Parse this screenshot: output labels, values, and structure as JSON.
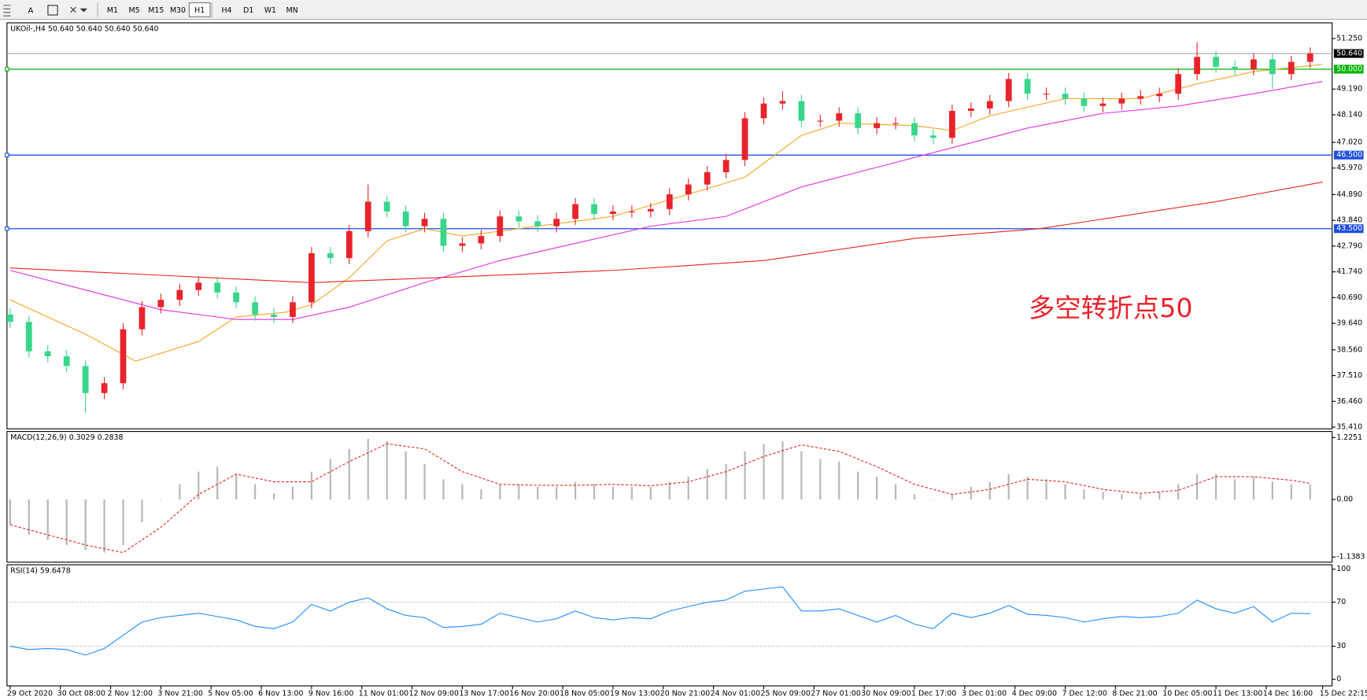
{
  "toolbar": {
    "text_tool": "A",
    "periods": [
      "M1",
      "M5",
      "M15",
      "M30",
      "H1",
      "H4",
      "D1",
      "W1",
      "MN"
    ],
    "active_period": 4
  },
  "chart_data": [
    {
      "type": "candlestick",
      "title": "UKOil-,H4 50.640 50.640 50.640 50.640",
      "annotation": {
        "text": "多空转折点50",
        "color": "#e8232b"
      },
      "up_color": "#e8232b",
      "down_color": "#38d68a",
      "xlim": [
        -0.5,
        210.5
      ],
      "ylim": [
        35.34,
        51.89
      ],
      "yticks": [
        {
          "value": 51.25,
          "label": "51.250"
        },
        {
          "value": 49.19,
          "label": "49.190"
        },
        {
          "value": 48.14,
          "label": "48.140"
        },
        {
          "value": 47.02,
          "label": "47.020"
        },
        {
          "value": 45.97,
          "label": "45.970"
        },
        {
          "value": 44.89,
          "label": "44.890"
        },
        {
          "value": 43.84,
          "label": "43.840"
        },
        {
          "value": 42.79,
          "label": "42.790"
        },
        {
          "value": 41.74,
          "label": "41.740"
        },
        {
          "value": 40.69,
          "label": "40.690"
        },
        {
          "value": 39.64,
          "label": "39.640"
        },
        {
          "value": 38.56,
          "label": "38.560"
        },
        {
          "value": 37.51,
          "label": "37.510"
        },
        {
          "value": 36.46,
          "label": "36.460"
        },
        {
          "value": 35.41,
          "label": "35.410"
        }
      ],
      "xticks": [
        {
          "value": 0,
          "label": "29 Oct 2020"
        },
        {
          "value": 8,
          "label": "30 Oct 08:00"
        },
        {
          "value": 16,
          "label": "2 Nov 12:00"
        },
        {
          "value": 24,
          "label": "3 Nov 21:00"
        },
        {
          "value": 32,
          "label": "5 Nov 05:00"
        },
        {
          "value": 40,
          "label": "6 Nov 13:00"
        },
        {
          "value": 48,
          "label": "9 Nov 16:00"
        },
        {
          "value": 56,
          "label": "11 Nov 01:00"
        },
        {
          "value": 64,
          "label": "12 Nov 09:00"
        },
        {
          "value": 72,
          "label": "13 Nov 17:00"
        },
        {
          "value": 80,
          "label": "16 Nov 20:00"
        },
        {
          "value": 88,
          "label": "18 Nov 05:00"
        },
        {
          "value": 96,
          "label": "19 Nov 13:00"
        },
        {
          "value": 104,
          "label": "20 Nov 21:00"
        },
        {
          "value": 112,
          "label": "24 Nov 01:00"
        },
        {
          "value": 120,
          "label": "25 Nov 09:00"
        },
        {
          "value": 128,
          "label": "27 Nov 01:00"
        },
        {
          "value": 136,
          "label": "30 Nov 09:00"
        },
        {
          "value": 144,
          "label": "1 Dec 17:00"
        },
        {
          "value": 152,
          "label": "3 Dec 01:00"
        },
        {
          "value": 160,
          "label": "4 Dec 09:00"
        },
        {
          "value": 168,
          "label": "7 Dec 12:00"
        },
        {
          "value": 176,
          "label": "8 Dec 21:00"
        },
        {
          "value": 184,
          "label": "10 Dec 05:00"
        },
        {
          "value": 192,
          "label": "11 Dec 13:00"
        },
        {
          "value": 200,
          "label": "14 Dec 16:00"
        },
        {
          "value": 209,
          "label": "15 Dec 22:15"
        }
      ],
      "current_price": {
        "value": 50.64,
        "label": "50.640",
        "color": "#9aa4ae"
      },
      "hlines": [
        {
          "value": 50.0,
          "label": "50.000",
          "color": "#00b400"
        },
        {
          "value": 46.5,
          "label": "46.500",
          "color": "#1f4fe0"
        },
        {
          "value": 43.5,
          "label": "43.500",
          "color": "#1f4fe0"
        }
      ],
      "x": [
        0,
        3,
        6,
        9,
        12,
        15,
        18,
        21,
        24,
        27,
        30,
        33,
        36,
        39,
        42,
        45,
        48,
        51,
        54,
        57,
        60,
        63,
        66,
        69,
        72,
        75,
        78,
        81,
        84,
        87,
        90,
        93,
        96,
        99,
        102,
        105,
        108,
        111,
        114,
        117,
        120,
        123,
        126,
        129,
        132,
        135,
        138,
        141,
        144,
        147,
        150,
        153,
        156,
        159,
        162,
        165,
        168,
        171,
        174,
        177,
        180,
        183,
        186,
        189,
        192,
        195,
        198,
        201,
        204,
        207
      ],
      "open": [
        40.0,
        39.7,
        38.5,
        38.3,
        37.9,
        36.8,
        37.2,
        39.4,
        40.3,
        40.6,
        41.0,
        41.3,
        40.9,
        40.5,
        40.0,
        39.9,
        40.5,
        42.5,
        42.3,
        43.4,
        44.6,
        44.2,
        43.6,
        43.9,
        42.8,
        42.9,
        43.2,
        44.0,
        43.8,
        43.6,
        43.9,
        44.5,
        44.1,
        44.2,
        44.2,
        44.3,
        44.9,
        45.3,
        45.8,
        46.3,
        48.0,
        48.6,
        48.7,
        47.9,
        47.9,
        48.2,
        47.6,
        47.8,
        47.8,
        47.3,
        47.2,
        48.3,
        48.4,
        48.7,
        49.6,
        49.0,
        49.0,
        48.8,
        48.5,
        48.6,
        48.8,
        48.9,
        49.0,
        49.8,
        50.5,
        50.1,
        50.0,
        50.4,
        49.8,
        50.3
      ],
      "high": [
        40.25,
        39.95,
        38.75,
        38.55,
        38.15,
        37.45,
        39.65,
        40.55,
        40.85,
        41.25,
        41.55,
        41.55,
        41.15,
        40.75,
        40.25,
        40.75,
        42.75,
        42.75,
        43.65,
        45.3,
        44.85,
        44.45,
        44.15,
        44.15,
        43.15,
        43.45,
        44.25,
        44.25,
        44.05,
        44.15,
        44.75,
        44.75,
        44.45,
        44.45,
        44.55,
        45.15,
        45.55,
        46.05,
        46.55,
        48.25,
        48.85,
        49.1,
        48.95,
        48.15,
        48.45,
        48.45,
        48.05,
        48.05,
        48.05,
        47.55,
        48.55,
        48.65,
        48.95,
        49.85,
        49.85,
        49.25,
        49.25,
        49.05,
        48.85,
        49.05,
        49.15,
        49.25,
        50.05,
        51.1,
        50.75,
        50.35,
        50.65,
        50.65,
        50.55,
        50.89
      ],
      "low": [
        39.45,
        38.25,
        38.05,
        37.65,
        36.0,
        36.55,
        36.95,
        39.15,
        40.05,
        40.35,
        40.75,
        40.65,
        40.25,
        39.75,
        39.65,
        39.65,
        40.25,
        42.05,
        42.05,
        43.15,
        43.95,
        43.35,
        43.35,
        42.55,
        42.55,
        42.65,
        42.95,
        43.55,
        43.35,
        43.35,
        43.65,
        43.85,
        43.85,
        43.95,
        43.95,
        44.05,
        44.65,
        45.05,
        45.55,
        46.05,
        47.75,
        48.35,
        47.65,
        47.65,
        47.65,
        47.35,
        47.35,
        47.55,
        47.05,
        46.95,
        46.95,
        48.05,
        48.15,
        48.45,
        48.75,
        48.75,
        48.55,
        48.25,
        48.25,
        48.35,
        48.55,
        48.65,
        48.75,
        49.55,
        49.85,
        49.75,
        49.75,
        49.2,
        49.55,
        50.05
      ],
      "close": [
        39.7,
        38.5,
        38.3,
        37.9,
        36.8,
        37.2,
        39.4,
        40.3,
        40.6,
        41.0,
        41.3,
        40.9,
        40.5,
        40.0,
        39.9,
        40.5,
        42.5,
        42.3,
        43.4,
        44.6,
        44.2,
        43.6,
        43.9,
        42.8,
        42.9,
        43.2,
        44.0,
        43.8,
        43.6,
        43.9,
        44.5,
        44.1,
        44.2,
        44.2,
        44.3,
        44.9,
        45.3,
        45.8,
        46.3,
        48.0,
        48.6,
        48.7,
        47.9,
        47.9,
        48.2,
        47.6,
        47.8,
        47.8,
        47.3,
        47.2,
        48.3,
        48.4,
        48.7,
        49.6,
        49.0,
        49.0,
        48.8,
        48.5,
        48.6,
        48.8,
        48.9,
        49.0,
        49.8,
        50.5,
        50.1,
        50.0,
        50.4,
        49.8,
        50.3,
        50.64
      ],
      "lines": [
        {
          "color": "#f5a623",
          "x": [
            0,
            12,
            20,
            30,
            36,
            44,
            48,
            54,
            60,
            66,
            72,
            84,
            96,
            108,
            117,
            126,
            132,
            144,
            150,
            156,
            168,
            180,
            189,
            198,
            209
          ],
          "values": [
            40.6,
            39.2,
            38.1,
            38.9,
            39.9,
            40.1,
            40.4,
            41.5,
            43.0,
            43.5,
            43.2,
            43.6,
            44.0,
            44.9,
            45.6,
            47.3,
            47.8,
            47.7,
            47.5,
            48.1,
            48.8,
            48.8,
            49.4,
            49.9,
            50.2
          ]
        },
        {
          "color": "#e62ee6",
          "x": [
            0,
            24,
            36,
            45,
            54,
            66,
            78,
            90,
            102,
            114,
            126,
            138,
            150,
            162,
            174,
            186,
            198,
            209
          ],
          "values": [
            41.8,
            40.2,
            39.8,
            39.8,
            40.3,
            41.3,
            42.2,
            42.9,
            43.6,
            44.0,
            45.2,
            46.0,
            46.8,
            47.6,
            48.2,
            48.5,
            49.0,
            49.5
          ]
        },
        {
          "color": "#e3261e",
          "x": [
            0,
            24,
            48,
            68,
            96,
            120,
            144,
            164,
            192,
            209
          ],
          "values": [
            41.9,
            41.6,
            41.3,
            41.5,
            41.8,
            42.2,
            43.1,
            43.5,
            44.6,
            45.4
          ]
        }
      ]
    },
    {
      "type": "macd",
      "title": "MACD(12,26,9) 0.3029 0.2838",
      "ylim": [
        -1.24,
        1.345
      ],
      "yticks": [
        1.2251,
        {
          "value": 0,
          "label": "0.00"
        },
        -1.1383
      ],
      "hist_color": "#b8b8b8",
      "signal_color": "#e3261e",
      "x": [
        0,
        3,
        6,
        9,
        12,
        15,
        18,
        21,
        24,
        27,
        30,
        33,
        36,
        39,
        42,
        45,
        48,
        51,
        54,
        57,
        60,
        63,
        66,
        69,
        72,
        75,
        78,
        81,
        84,
        87,
        90,
        93,
        96,
        99,
        102,
        105,
        108,
        111,
        114,
        117,
        120,
        123,
        126,
        129,
        132,
        135,
        138,
        141,
        144,
        147,
        150,
        153,
        156,
        159,
        162,
        165,
        168,
        171,
        174,
        177,
        180,
        183,
        186,
        189,
        192,
        195,
        198,
        201,
        204,
        207
      ],
      "values": [
        -0.5,
        -0.7,
        -0.8,
        -0.9,
        -1.0,
        -1.05,
        -0.9,
        -0.45,
        0.0,
        0.3,
        0.55,
        0.65,
        0.5,
        0.3,
        0.12,
        0.25,
        0.55,
        0.8,
        1.0,
        1.2,
        1.15,
        0.95,
        0.7,
        0.4,
        0.3,
        0.2,
        0.3,
        0.3,
        0.25,
        0.25,
        0.35,
        0.3,
        0.25,
        0.25,
        0.25,
        0.35,
        0.45,
        0.6,
        0.7,
        0.95,
        1.1,
        1.15,
        0.95,
        0.8,
        0.75,
        0.55,
        0.45,
        0.3,
        0.1,
        0.0,
        0.1,
        0.25,
        0.35,
        0.5,
        0.45,
        0.4,
        0.3,
        0.2,
        0.15,
        0.1,
        0.1,
        0.15,
        0.3,
        0.5,
        0.5,
        0.4,
        0.45,
        0.35,
        0.3,
        0.3
      ],
      "signal_x": [
        0,
        6,
        12,
        18,
        24,
        30,
        36,
        42,
        48,
        54,
        60,
        66,
        72,
        78,
        84,
        90,
        96,
        102,
        108,
        114,
        120,
        126,
        132,
        138,
        144,
        150,
        156,
        162,
        168,
        174,
        180,
        186,
        192,
        198,
        204,
        207
      ],
      "signal": [
        -0.5,
        -0.7,
        -0.9,
        -1.05,
        -0.55,
        0.1,
        0.5,
        0.35,
        0.35,
        0.75,
        1.1,
        1.0,
        0.55,
        0.3,
        0.28,
        0.28,
        0.3,
        0.27,
        0.35,
        0.55,
        0.85,
        1.08,
        0.95,
        0.65,
        0.3,
        0.1,
        0.2,
        0.4,
        0.35,
        0.2,
        0.12,
        0.18,
        0.45,
        0.45,
        0.38,
        0.32
      ]
    },
    {
      "type": "rsi",
      "title": "RSI(14) 59.6478",
      "ylim": [
        -6,
        104
      ],
      "yticks": [
        100,
        70,
        30,
        0
      ],
      "levels": [
        70,
        30
      ],
      "color": "#1e8fff",
      "x": [
        0,
        3,
        6,
        9,
        12,
        15,
        18,
        21,
        24,
        27,
        30,
        33,
        36,
        39,
        42,
        45,
        48,
        51,
        54,
        57,
        60,
        63,
        66,
        69,
        72,
        75,
        78,
        81,
        84,
        87,
        90,
        93,
        96,
        99,
        102,
        105,
        108,
        111,
        114,
        117,
        120,
        123,
        126,
        129,
        132,
        135,
        138,
        141,
        144,
        147,
        150,
        153,
        156,
        159,
        162,
        165,
        168,
        171,
        174,
        177,
        180,
        183,
        186,
        189,
        192,
        195,
        198,
        201,
        204,
        207
      ],
      "values": [
        30,
        27,
        28,
        27,
        22,
        28,
        40,
        52,
        56,
        58,
        60,
        57,
        54,
        48,
        46,
        52,
        68,
        62,
        70,
        74,
        64,
        58,
        56,
        47,
        48,
        50,
        60,
        56,
        52,
        55,
        62,
        56,
        54,
        56,
        55,
        62,
        66,
        70,
        72,
        80,
        82,
        84,
        62,
        62,
        64,
        58,
        52,
        58,
        50,
        46,
        60,
        56,
        60,
        67,
        59,
        58,
        56,
        52,
        55,
        57,
        56,
        57,
        60,
        72,
        64,
        60,
        66,
        52,
        60,
        59.6
      ]
    }
  ]
}
